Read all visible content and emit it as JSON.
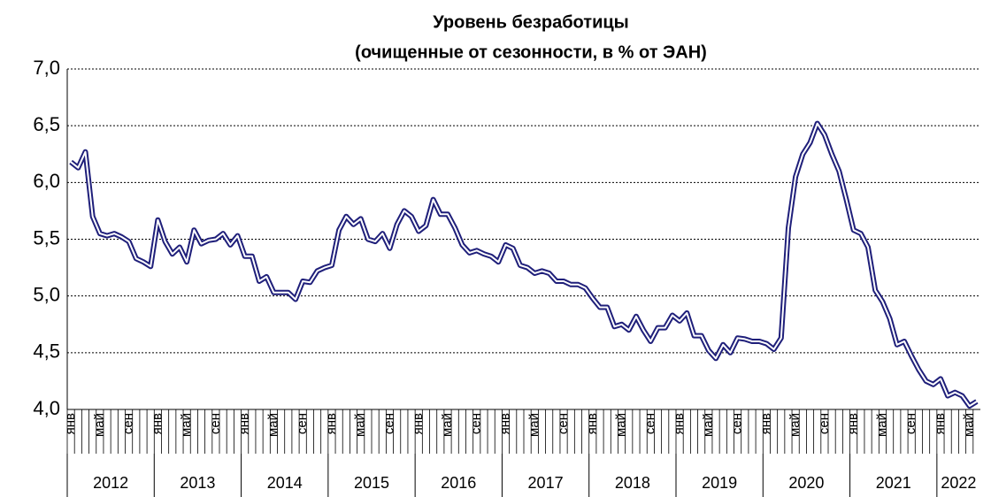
{
  "chart_data": {
    "type": "line",
    "title": "Уровень безработицы",
    "subtitle": "(очищенные от сезонности, в % от ЭАН)",
    "categories": [
      "янв",
      null,
      null,
      null,
      "май",
      null,
      null,
      null,
      "сен",
      null,
      null,
      null,
      "янв",
      null,
      null,
      null,
      "май",
      null,
      null,
      null,
      "сен",
      null,
      null,
      null,
      "янв",
      null,
      null,
      null,
      "май",
      null,
      null,
      null,
      "сен",
      null,
      null,
      null,
      "янв",
      null,
      null,
      null,
      "май",
      null,
      null,
      null,
      "сен",
      null,
      null,
      null,
      "янв",
      null,
      null,
      null,
      "май",
      null,
      null,
      null,
      "сен",
      null,
      null,
      null,
      "янв",
      null,
      null,
      null,
      "май",
      null,
      null,
      null,
      "сен",
      null,
      null,
      null,
      "янв",
      null,
      null,
      null,
      "май",
      null,
      null,
      null,
      "сен",
      null,
      null,
      null,
      "янв",
      null,
      null,
      null,
      "май",
      null,
      null,
      null,
      "сен",
      null,
      null,
      null,
      "янв",
      null,
      null,
      null,
      "май",
      null,
      null,
      null,
      "сен",
      null,
      null,
      null,
      "янв",
      null,
      null,
      null,
      "май",
      null,
      null,
      null,
      "сен",
      null,
      null,
      null,
      "янв",
      null,
      null,
      null,
      "май",
      null
    ],
    "years": [
      "2012",
      "2013",
      "2014",
      "2015",
      "2016",
      "2017",
      "2018",
      "2019",
      "2020",
      "2021",
      "2022"
    ],
    "series": [
      {
        "name": "Уровень безработицы",
        "color": "#1f1f7a",
        "values": [
          6.18,
          6.13,
          6.27,
          5.7,
          5.55,
          5.53,
          5.55,
          5.52,
          5.48,
          5.33,
          5.3,
          5.26,
          5.67,
          5.48,
          5.37,
          5.43,
          5.3,
          5.58,
          5.46,
          5.49,
          5.5,
          5.55,
          5.45,
          5.53,
          5.35,
          5.35,
          5.13,
          5.17,
          5.03,
          5.03,
          5.03,
          4.97,
          5.13,
          5.12,
          5.22,
          5.25,
          5.27,
          5.58,
          5.7,
          5.63,
          5.68,
          5.5,
          5.48,
          5.55,
          5.42,
          5.63,
          5.75,
          5.7,
          5.57,
          5.62,
          5.85,
          5.72,
          5.72,
          5.6,
          5.45,
          5.38,
          5.4,
          5.37,
          5.35,
          5.3,
          5.45,
          5.42,
          5.27,
          5.25,
          5.2,
          5.22,
          5.2,
          5.13,
          5.13,
          5.1,
          5.1,
          5.07,
          4.98,
          4.9,
          4.9,
          4.73,
          4.75,
          4.7,
          4.82,
          4.7,
          4.6,
          4.72,
          4.72,
          4.83,
          4.78,
          4.85,
          4.65,
          4.65,
          4.52,
          4.45,
          4.57,
          4.5,
          4.63,
          4.62,
          4.6,
          4.6,
          4.58,
          4.53,
          4.63,
          5.6,
          6.05,
          6.25,
          6.35,
          6.52,
          6.42,
          6.25,
          6.1,
          5.85,
          5.58,
          5.55,
          5.43,
          5.05,
          4.95,
          4.8,
          4.57,
          4.6,
          4.47,
          4.35,
          4.25,
          4.22,
          4.27,
          4.12,
          4.15,
          4.12,
          4.03,
          4.07
        ]
      }
    ],
    "ylim": [
      4.0,
      7.0
    ],
    "yticks": [
      {
        "value": 4.0,
        "label": "4,0"
      },
      {
        "value": 4.5,
        "label": "4,5"
      },
      {
        "value": 5.0,
        "label": "5,0"
      },
      {
        "value": 5.5,
        "label": "5,5"
      },
      {
        "value": 6.0,
        "label": "6,0"
      },
      {
        "value": 6.5,
        "label": "6,5"
      },
      {
        "value": 7.0,
        "label": "7,0"
      }
    ],
    "grid": true
  }
}
